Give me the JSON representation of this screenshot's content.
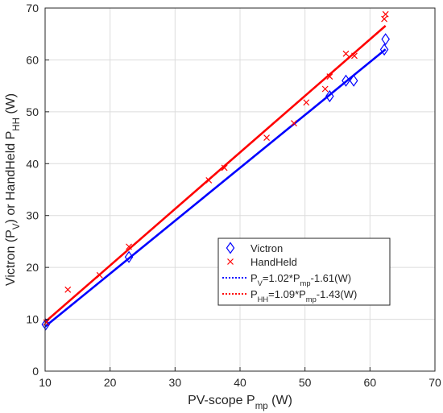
{
  "chart_data": {
    "type": "scatter",
    "xlabel": {
      "main": "PV-scope P",
      "sub": "mp",
      "tail": "  (W)"
    },
    "ylabel": {
      "part1": "Victron  (P",
      "sub1": "V",
      "part2": ")  or  HandHeld  P",
      "sub2": "HH",
      "part3": "  (W)"
    },
    "xlim": [
      10,
      70
    ],
    "ylim": [
      0,
      70
    ],
    "xticks": [
      10,
      20,
      30,
      40,
      50,
      60,
      70
    ],
    "yticks": [
      0,
      10,
      20,
      30,
      40,
      50,
      60,
      70
    ],
    "grid": true,
    "legend_position": "lower-right",
    "colors": {
      "victron": "#0000ff",
      "handheld": "#ff0000",
      "fit_victron": "#0000ff",
      "fit_handheld": "#ff0000"
    },
    "series": [
      {
        "name": "Victron",
        "marker": "diamond",
        "points": [
          [
            10.1,
            9.0
          ],
          [
            22.9,
            22.0
          ],
          [
            53.8,
            53.0
          ],
          [
            56.3,
            56.0
          ],
          [
            57.5,
            56.0
          ],
          [
            62.2,
            62.0
          ],
          [
            62.4,
            64.0
          ]
        ]
      },
      {
        "name": "HandHeld",
        "marker": "x",
        "points": [
          [
            10.2,
            9.4
          ],
          [
            13.5,
            15.7
          ],
          [
            18.4,
            18.5
          ],
          [
            22.9,
            24.0
          ],
          [
            35.2,
            36.8
          ],
          [
            37.6,
            39.2
          ],
          [
            44.1,
            45.0
          ],
          [
            48.3,
            47.8
          ],
          [
            50.2,
            51.8
          ],
          [
            53.1,
            54.4
          ],
          [
            53.8,
            56.8
          ],
          [
            56.3,
            61.2
          ],
          [
            57.6,
            60.8
          ],
          [
            62.2,
            67.9
          ],
          [
            62.4,
            68.8
          ]
        ]
      }
    ],
    "fits": [
      {
        "label_main": "P",
        "label_sub": "V",
        "label_eq_pre": "=1.02*P",
        "label_eq_sub": "mp",
        "label_eq_post": "-1.61(W)",
        "slope": 1.02,
        "intercept": -1.61,
        "x_range": [
          10,
          62.4
        ]
      },
      {
        "label_main": "P",
        "label_sub": "HH",
        "label_eq_pre": "=1.09*P",
        "label_eq_sub": "mp",
        "label_eq_post": "-1.43(W)",
        "slope": 1.09,
        "intercept": -1.43,
        "x_range": [
          10,
          62.4
        ]
      }
    ]
  }
}
